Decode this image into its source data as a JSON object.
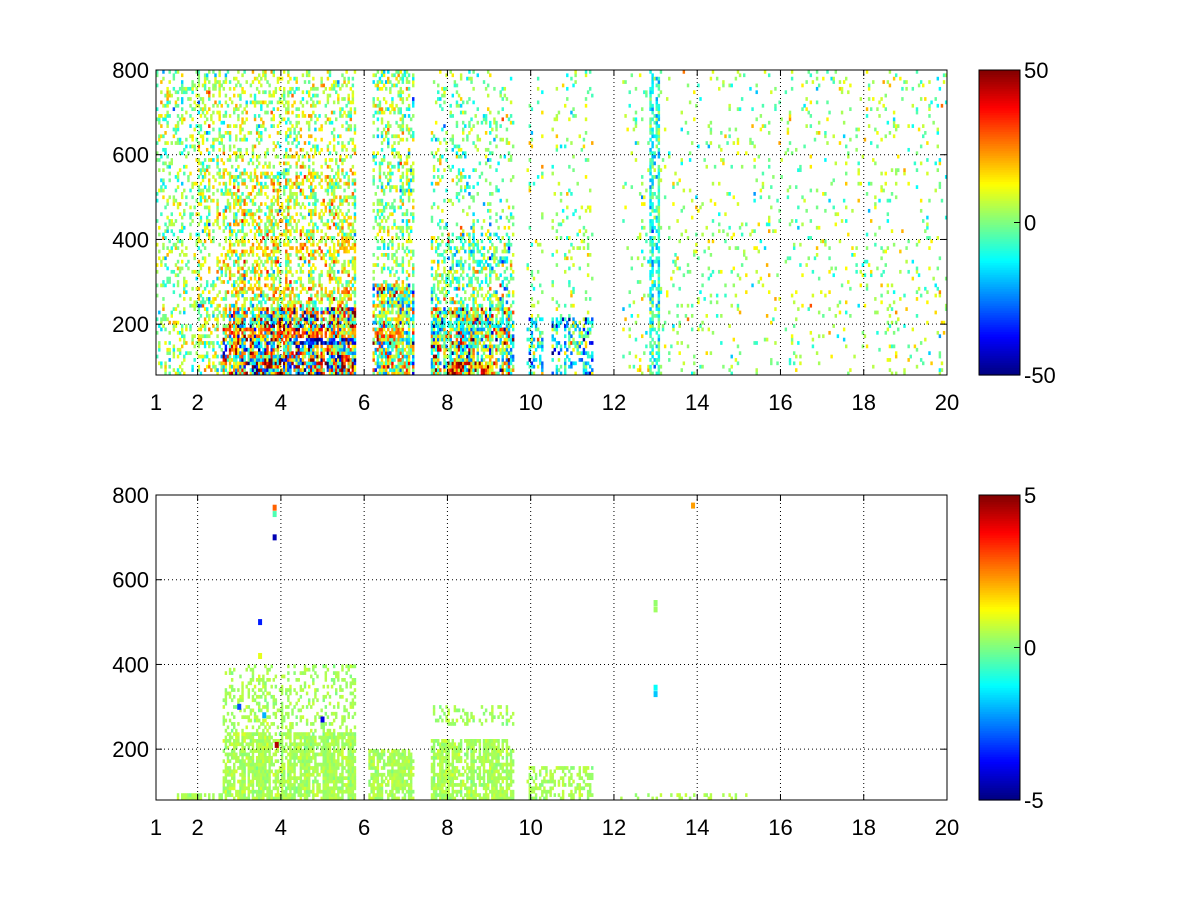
{
  "figure": {
    "background": "#ffffff",
    "colormap": "jet"
  },
  "chart_data": [
    {
      "type": "heatmap",
      "title": "",
      "xlabel": "",
      "ylabel": "",
      "xlim": [
        1,
        20
      ],
      "ylim": [
        80,
        800
      ],
      "xticks": [
        1,
        2,
        4,
        6,
        8,
        10,
        12,
        14,
        16,
        18,
        20
      ],
      "yticks": [
        200,
        400,
        600,
        800
      ],
      "grid": true,
      "grid_style": "dotted",
      "colorbar": {
        "position": "right",
        "clim": [
          -50,
          50
        ],
        "ticks": [
          -50,
          0,
          50
        ]
      },
      "noise": {
        "note_values_are_estimated_bands": true,
        "blank_bands_x": [
          [
            10.3,
            10.5
          ],
          [
            11.5,
            12.2
          ]
        ],
        "seed": 11
      },
      "bands": [
        {
          "x": [
            1.0,
            2.0
          ],
          "y": [
            80,
            800
          ],
          "density": 0.26,
          "value_mean": 2,
          "value_sd": 9
        },
        {
          "x": [
            2.0,
            2.6
          ],
          "y": [
            80,
            800
          ],
          "density": 0.3,
          "value_mean": 4,
          "value_sd": 12
        },
        {
          "x": [
            2.6,
            5.8
          ],
          "y": [
            80,
            240
          ],
          "density": 0.82,
          "value_mean": 5,
          "value_sd": 26
        },
        {
          "x": [
            2.6,
            5.8
          ],
          "y": [
            240,
            560
          ],
          "density": 0.45,
          "value_mean": 8,
          "value_sd": 12
        },
        {
          "x": [
            2.6,
            5.8
          ],
          "y": [
            560,
            800
          ],
          "density": 0.26,
          "value_mean": 5,
          "value_sd": 9
        },
        {
          "x": [
            3.3,
            5.8
          ],
          "y": [
            80,
            120
          ],
          "density": 0.96,
          "value_mean": 10,
          "value_sd": 38
        },
        {
          "x": [
            6.2,
            7.2
          ],
          "y": [
            80,
            300
          ],
          "density": 0.78,
          "value_mean": 2,
          "value_sd": 18
        },
        {
          "x": [
            6.2,
            7.2
          ],
          "y": [
            300,
            800
          ],
          "density": 0.32,
          "value_mean": 2,
          "value_sd": 10
        },
        {
          "x": [
            7.6,
            9.6
          ],
          "y": [
            80,
            240
          ],
          "density": 0.84,
          "value_mean": 2,
          "value_sd": 22
        },
        {
          "x": [
            7.6,
            9.6
          ],
          "y": [
            240,
            420
          ],
          "density": 0.45,
          "value_mean": -2,
          "value_sd": 12
        },
        {
          "x": [
            7.6,
            9.6
          ],
          "y": [
            420,
            800
          ],
          "density": 0.18,
          "value_mean": 0,
          "value_sd": 9
        },
        {
          "x": [
            8.0,
            9.4
          ],
          "y": [
            80,
            110
          ],
          "density": 0.95,
          "value_mean": 22,
          "value_sd": 30
        },
        {
          "x": [
            9.9,
            11.5
          ],
          "y": [
            80,
            220
          ],
          "density": 0.48,
          "value_mean": -14,
          "value_sd": 16
        },
        {
          "x": [
            9.9,
            11.5
          ],
          "y": [
            220,
            800
          ],
          "density": 0.09,
          "value_mean": 2,
          "value_sd": 9
        },
        {
          "x": [
            12.2,
            20.0
          ],
          "y": [
            80,
            800
          ],
          "density": 0.07,
          "value_mean": 2,
          "value_sd": 9
        },
        {
          "x": [
            12.85,
            13.1
          ],
          "y": [
            80,
            780
          ],
          "density": 0.55,
          "value_mean": -9,
          "value_sd": 8
        }
      ],
      "lines": [
        {
          "y": 180,
          "x": [
            2.6,
            7.0
          ],
          "value": 26
        },
        {
          "y": 280,
          "x": [
            2.6,
            6.0
          ],
          "value": 20
        },
        {
          "y": 380,
          "x": [
            2.6,
            6.0
          ],
          "value": 16
        },
        {
          "y": 160,
          "x": [
            4.2,
            6.0
          ],
          "value": -40
        },
        {
          "y": 200,
          "x": [
            7.6,
            9.6
          ],
          "value": -10
        }
      ]
    },
    {
      "type": "heatmap",
      "title": "",
      "xlabel": "",
      "ylabel": "",
      "xlim": [
        1,
        20
      ],
      "ylim": [
        80,
        800
      ],
      "xticks": [
        1,
        2,
        4,
        6,
        8,
        10,
        12,
        14,
        16,
        18,
        20
      ],
      "yticks": [
        200,
        400,
        600,
        800
      ],
      "grid": true,
      "grid_style": "dotted",
      "colorbar": {
        "position": "right",
        "clim": [
          -5,
          5
        ],
        "ticks": [
          -5,
          0,
          5
        ]
      },
      "noise": {
        "note_values_are_estimated_bands": true,
        "blank_bands_x": [
          [
            5.8,
            6.1
          ],
          [
            7.2,
            7.6
          ]
        ],
        "seed": 23
      },
      "bands": [
        {
          "x": [
            1.5,
            3.2
          ],
          "y": [
            80,
            92
          ],
          "density": 0.75,
          "value_mean": 0.4,
          "value_sd": 0.15
        },
        {
          "x": [
            2.6,
            5.8
          ],
          "y": [
            80,
            240
          ],
          "density": 0.78,
          "value_mean": 0.4,
          "value_sd": 0.2
        },
        {
          "x": [
            2.6,
            5.8
          ],
          "y": [
            240,
            400
          ],
          "density": 0.28,
          "value_mean": 0.4,
          "value_sd": 0.2
        },
        {
          "x": [
            6.1,
            7.2
          ],
          "y": [
            80,
            200
          ],
          "density": 0.75,
          "value_mean": 0.4,
          "value_sd": 0.2
        },
        {
          "x": [
            7.6,
            9.6
          ],
          "y": [
            80,
            220
          ],
          "density": 0.78,
          "value_mean": 0.4,
          "value_sd": 0.2
        },
        {
          "x": [
            7.6,
            9.6
          ],
          "y": [
            260,
            300
          ],
          "density": 0.3,
          "value_mean": 0.4,
          "value_sd": 0.2
        },
        {
          "x": [
            9.9,
            11.5
          ],
          "y": [
            80,
            160
          ],
          "density": 0.45,
          "value_mean": 0.4,
          "value_sd": 0.2
        },
        {
          "x": [
            12.0,
            15.2
          ],
          "y": [
            80,
            92
          ],
          "density": 0.25,
          "value_mean": 0.4,
          "value_sd": 0.15
        }
      ],
      "points": [
        {
          "x": 3.85,
          "y": 770,
          "value": 2.8
        },
        {
          "x": 3.85,
          "y": 755,
          "value": -0.5
        },
        {
          "x": 3.85,
          "y": 700,
          "value": -4.5
        },
        {
          "x": 3.5,
          "y": 500,
          "value": -3.5
        },
        {
          "x": 3.5,
          "y": 420,
          "value": 1.0
        },
        {
          "x": 3.0,
          "y": 300,
          "value": -3.0
        },
        {
          "x": 3.6,
          "y": 280,
          "value": -2.0
        },
        {
          "x": 5.0,
          "y": 270,
          "value": -4.0
        },
        {
          "x": 3.9,
          "y": 210,
          "value": 4.5
        },
        {
          "x": 13.0,
          "y": 545,
          "value": 0.2
        },
        {
          "x": 13.0,
          "y": 530,
          "value": 0.3
        },
        {
          "x": 13.0,
          "y": 345,
          "value": -1.2
        },
        {
          "x": 13.0,
          "y": 330,
          "value": -1.8
        },
        {
          "x": 13.9,
          "y": 775,
          "value": 2.2
        }
      ]
    }
  ]
}
